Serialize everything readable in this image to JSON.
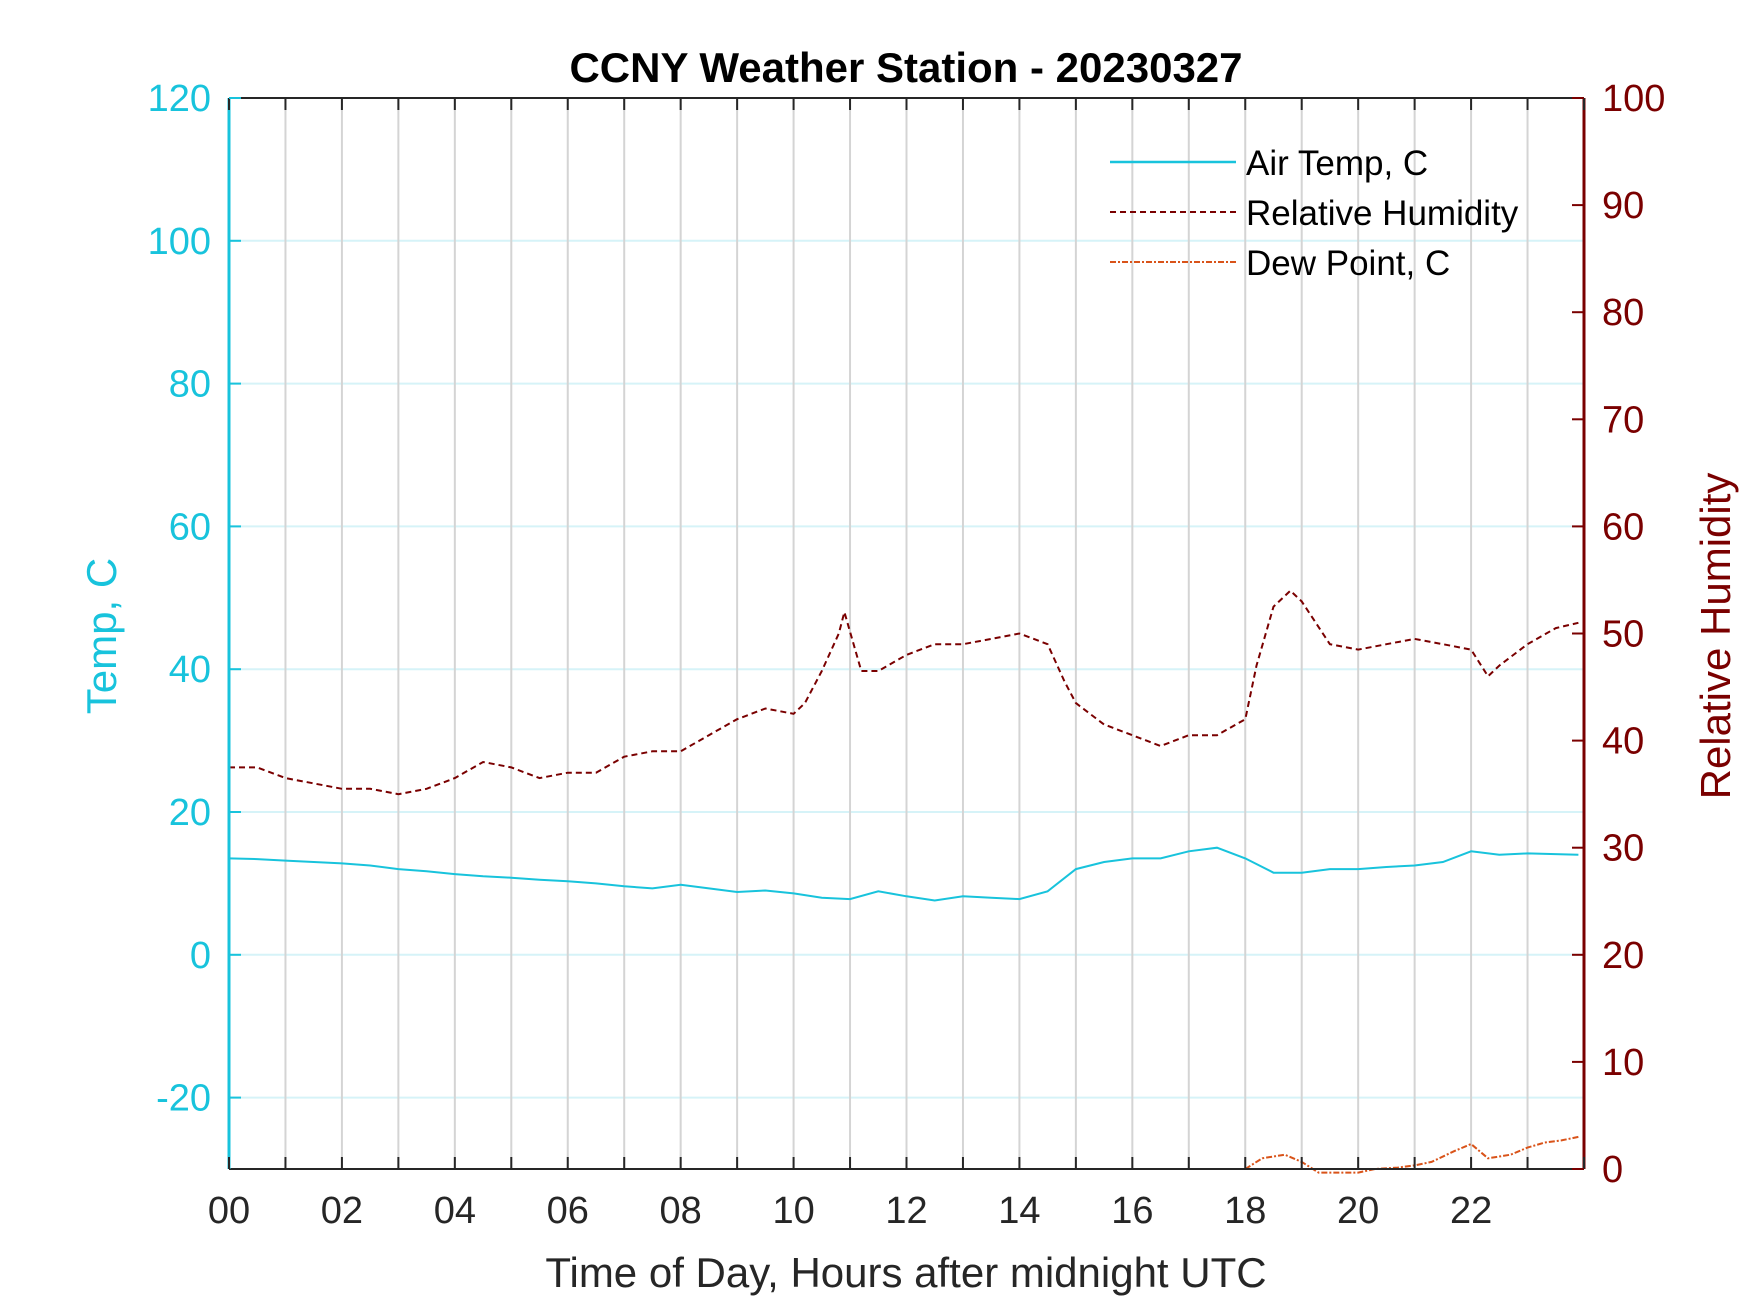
{
  "chart_data": {
    "type": "line",
    "title": "CCNY Weather Station - 20230327",
    "xlabel": "Time of Day, Hours after midnight UTC",
    "ylabel_left": "Temp, C",
    "ylabel_right": "Relative Humidity",
    "xlim": [
      0,
      24
    ],
    "ylim_left": [
      -30,
      120
    ],
    "ylim_right": [
      0,
      100
    ],
    "x_ticks": [
      "00",
      "02",
      "04",
      "06",
      "08",
      "10",
      "12",
      "14",
      "16",
      "18",
      "20",
      "22"
    ],
    "x_tick_values": [
      0,
      2,
      4,
      6,
      8,
      10,
      12,
      14,
      16,
      18,
      20,
      22
    ],
    "y_ticks_left": [
      -20,
      0,
      20,
      40,
      60,
      80,
      100,
      120
    ],
    "y_ticks_right": [
      0,
      10,
      20,
      30,
      40,
      50,
      60,
      70,
      80,
      90,
      100
    ],
    "grid": {
      "vertical_every_hours": 1,
      "horizontal": true
    },
    "legend_position": "top-right",
    "colors": {
      "temp": "#18c3dc",
      "rh": "#7a0000",
      "dew": "#d95319",
      "grid_v": "#d4d4d4",
      "grid_h": "#d6f3f8"
    },
    "series": [
      {
        "name": "Air Temp, C",
        "axis": "left",
        "style": "solid",
        "x": [
          0,
          0.5,
          1,
          1.5,
          2,
          2.5,
          3,
          3.5,
          4,
          4.5,
          5,
          5.5,
          6,
          6.5,
          7,
          7.5,
          8,
          8.5,
          9,
          9.5,
          10,
          10.5,
          11,
          11.5,
          12,
          12.5,
          13,
          13.5,
          14,
          14.5,
          15,
          15.5,
          16,
          16.5,
          17,
          17.5,
          18,
          18.5,
          19,
          19.5,
          20,
          20.5,
          21,
          21.5,
          22,
          22.5,
          23,
          23.9
        ],
        "y": [
          13.5,
          13.4,
          13.2,
          13.0,
          12.8,
          12.5,
          12.0,
          11.7,
          11.3,
          11.0,
          10.8,
          10.5,
          10.3,
          10.0,
          9.6,
          9.3,
          9.8,
          9.3,
          8.8,
          9.0,
          8.6,
          8.0,
          7.8,
          8.9,
          8.2,
          7.6,
          8.2,
          8.0,
          7.8,
          8.9,
          12.0,
          13.0,
          13.5,
          13.5,
          14.5,
          15.0,
          13.5,
          11.5,
          11.5,
          12.0,
          12.0,
          12.3,
          12.5,
          13.0,
          14.5,
          14.0,
          14.2,
          14.0
        ]
      },
      {
        "name": "Relative Humidity",
        "axis": "right",
        "style": "dashed",
        "x": [
          0,
          0.5,
          1,
          1.5,
          2,
          2.5,
          3,
          3.5,
          4,
          4.5,
          5,
          5.5,
          6,
          6.5,
          7,
          7.5,
          8,
          8.5,
          9,
          9.5,
          10,
          10.2,
          10.5,
          10.8,
          10.9,
          11.2,
          11.5,
          12,
          12.5,
          13,
          13.5,
          14,
          14.5,
          14.8,
          15,
          15.5,
          16,
          16.5,
          17,
          17.5,
          18,
          18.2,
          18.5,
          18.8,
          19,
          19.5,
          20,
          20.5,
          21,
          21.5,
          22,
          22.3,
          22.5,
          23,
          23.5,
          23.9
        ],
        "y": [
          37.5,
          37.5,
          36.5,
          36.0,
          35.5,
          35.5,
          35.0,
          35.5,
          36.5,
          38.0,
          37.5,
          36.5,
          37.0,
          37.0,
          38.5,
          39.0,
          39.0,
          40.5,
          42.0,
          43.0,
          42.5,
          43.5,
          46.5,
          50.0,
          52.0,
          46.5,
          46.5,
          48.0,
          49.0,
          49.0,
          49.5,
          50.0,
          49.0,
          45.5,
          43.5,
          41.5,
          40.5,
          39.5,
          40.5,
          40.5,
          42.0,
          47.0,
          52.5,
          54.0,
          53.0,
          49.0,
          48.5,
          49.0,
          49.5,
          49.0,
          48.5,
          46.0,
          47.0,
          49.0,
          50.5,
          51.0
        ]
      },
      {
        "name": "Dew Point, C",
        "axis": "left",
        "style": "dash-dot",
        "x": [
          18,
          18.3,
          18.7,
          19.0,
          19.3,
          19.7,
          20.0,
          20.3,
          20.7,
          21.0,
          21.3,
          21.7,
          22.0,
          22.3,
          22.7,
          23.0,
          23.3,
          23.6,
          23.9
        ],
        "y": [
          -30,
          -28.5,
          -28.0,
          -29.0,
          -30.5,
          -30.5,
          -30.5,
          -30.0,
          -29.8,
          -29.5,
          -29.0,
          -27.5,
          -26.5,
          -28.5,
          -28.0,
          -27.0,
          -26.3,
          -26.0,
          -25.5
        ]
      }
    ]
  }
}
